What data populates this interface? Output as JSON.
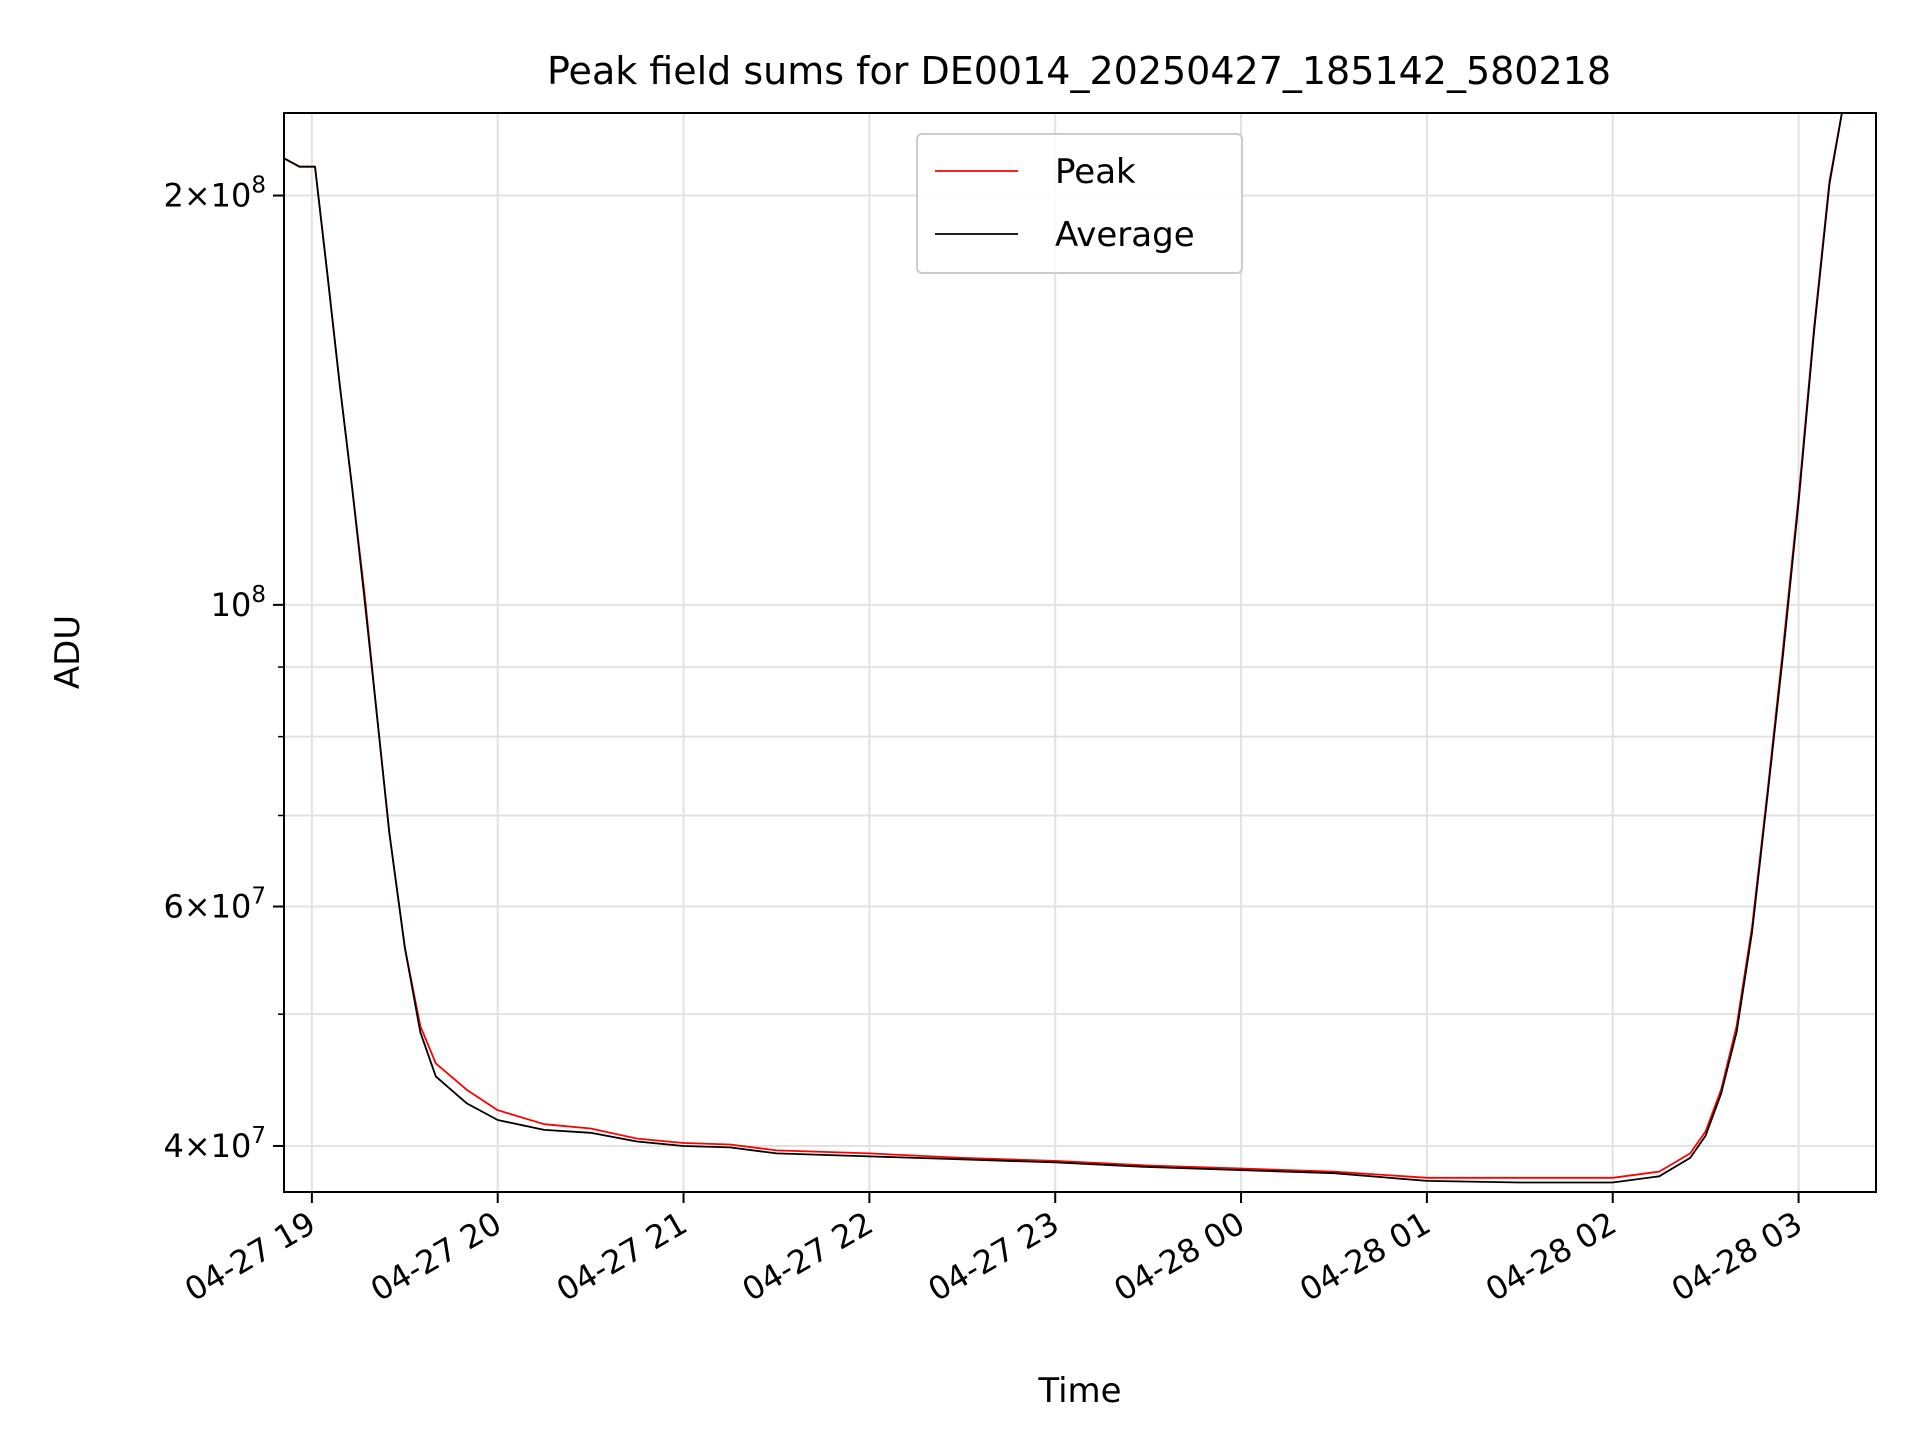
{
  "chart_data": {
    "type": "line",
    "title": "Peak field sums for DE0014_20250427_185142_580218",
    "xlabel": "Time",
    "ylabel": "ADU",
    "yscale": "log",
    "grid": true,
    "legend_position": "upper-center",
    "xlim": [
      "2025-04-27 18:51",
      "2025-04-28 03:25"
    ],
    "ylim": [
      37000000,
      230000000
    ],
    "x_ticks": [
      {
        "value": "2025-04-27 19:00",
        "label": "04-27 19"
      },
      {
        "value": "2025-04-27 20:00",
        "label": "04-27 20"
      },
      {
        "value": "2025-04-27 21:00",
        "label": "04-27 21"
      },
      {
        "value": "2025-04-27 22:00",
        "label": "04-27 22"
      },
      {
        "value": "2025-04-27 23:00",
        "label": "04-27 23"
      },
      {
        "value": "2025-04-28 00:00",
        "label": "04-28 00"
      },
      {
        "value": "2025-04-28 01:00",
        "label": "04-28 01"
      },
      {
        "value": "2025-04-28 02:00",
        "label": "04-28 02"
      },
      {
        "value": "2025-04-28 03:00",
        "label": "04-28 03"
      }
    ],
    "y_ticks": [
      {
        "value": 40000000,
        "base": "4×10",
        "exp": "7"
      },
      {
        "value": 60000000,
        "base": "6×10",
        "exp": "7"
      },
      {
        "value": 100000000,
        "base": "10",
        "exp": "8"
      },
      {
        "value": 200000000,
        "base": "2×10",
        "exp": "8"
      }
    ],
    "y_minor_ticks": [
      50000000,
      70000000,
      80000000,
      90000000
    ],
    "x": [
      "2025-04-27 18:51",
      "2025-04-27 18:56",
      "2025-04-27 19:01",
      "2025-04-27 19:05",
      "2025-04-27 19:09",
      "2025-04-27 19:13",
      "2025-04-27 19:17",
      "2025-04-27 19:21",
      "2025-04-27 19:25",
      "2025-04-27 19:30",
      "2025-04-27 19:35",
      "2025-04-27 19:40",
      "2025-04-27 19:50",
      "2025-04-27 20:00",
      "2025-04-27 20:15",
      "2025-04-27 20:30",
      "2025-04-27 20:45",
      "2025-04-27 21:00",
      "2025-04-27 21:15",
      "2025-04-27 21:30",
      "2025-04-27 22:00",
      "2025-04-27 22:30",
      "2025-04-27 23:00",
      "2025-04-27 23:30",
      "2025-04-28 00:00",
      "2025-04-28 00:30",
      "2025-04-28 01:00",
      "2025-04-28 01:30",
      "2025-04-28 02:00",
      "2025-04-28 02:15",
      "2025-04-28 02:25",
      "2025-04-28 02:30",
      "2025-04-28 02:35",
      "2025-04-28 02:40",
      "2025-04-28 02:45",
      "2025-04-28 02:50",
      "2025-04-28 02:55",
      "2025-04-28 03:00",
      "2025-04-28 03:05",
      "2025-04-28 03:10",
      "2025-04-28 03:14"
    ],
    "series": [
      {
        "name": "Peak",
        "color": "#ff0000",
        "values": [
          213000000,
          210000000,
          210000000,
          175000000,
          145000000,
          122000000,
          102000000,
          83000000,
          68000000,
          56000000,
          49000000,
          46000000,
          44000000,
          42500000,
          41500000,
          41200000,
          40500000,
          40200000,
          40100000,
          39700000,
          39500000,
          39200000,
          39000000,
          38700000,
          38500000,
          38300000,
          37900000,
          37900000,
          37900000,
          38300000,
          39500000,
          41000000,
          44000000,
          49000000,
          58000000,
          73000000,
          93000000,
          120000000,
          160000000,
          205000000,
          230000000
        ]
      },
      {
        "name": "Average",
        "color": "#000000",
        "values": [
          213000000,
          210000000,
          210000000,
          175000000,
          145000000,
          122000000,
          101000000,
          83000000,
          68000000,
          56000000,
          48500000,
          45000000,
          43000000,
          41800000,
          41100000,
          40900000,
          40300000,
          40000000,
          39900000,
          39500000,
          39300000,
          39100000,
          38900000,
          38600000,
          38400000,
          38200000,
          37700000,
          37600000,
          37600000,
          38000000,
          39200000,
          40700000,
          43700000,
          48500000,
          57500000,
          72500000,
          92000000,
          119000000,
          159000000,
          204000000,
          230000000
        ]
      }
    ]
  }
}
